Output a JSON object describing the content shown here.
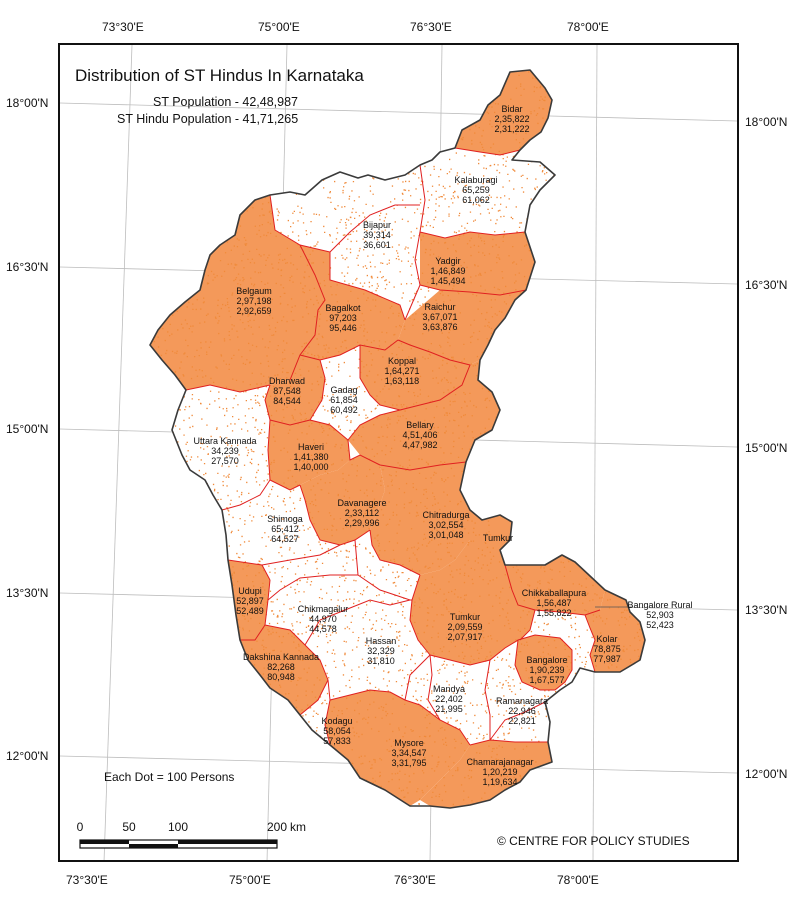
{
  "title": "Distribution of ST Hindus In Karnataka",
  "summary": {
    "st_population": "ST Population - 42,48,987",
    "st_hindu_population": "ST Hindu Population - 41,71,265"
  },
  "legend": {
    "dot_note": "Each Dot = 100 Persons"
  },
  "credit": "© CENTRE FOR POLICY STUDIES",
  "scale_bar": {
    "labels": [
      "0",
      "50",
      "100",
      "200",
      "km"
    ]
  },
  "graticule": {
    "lon_labels": [
      "73°30'E",
      "75°00'E",
      "76°30'E",
      "78°00'E"
    ],
    "lat_labels": [
      "18°00'N",
      "16°30'N",
      "15°00'N",
      "13°30'N",
      "12°00'N"
    ]
  },
  "colors": {
    "fill_high": "#f4995a",
    "dots": "#f08a3a",
    "district_border": "#e02020",
    "state_border": "#3a3a3a",
    "graticule": "#bdbdbd"
  },
  "districts": [
    {
      "name": "Bidar",
      "st_population": "2,35,822",
      "st_hindu": "2,31,222",
      "shaded": true
    },
    {
      "name": "Kalaburagi",
      "st_population": "65,259",
      "st_hindu": "61,062",
      "shaded": false
    },
    {
      "name": "Bijapur",
      "st_population": "39,314",
      "st_hindu": "36,601",
      "shaded": false
    },
    {
      "name": "Yadgir",
      "st_population": "1,46,849",
      "st_hindu": "1,45,494",
      "shaded": true
    },
    {
      "name": "Belgaum",
      "st_population": "2,97,198",
      "st_hindu": "2,92,659",
      "shaded": true
    },
    {
      "name": "Bagalkot",
      "st_population": "97,203",
      "st_hindu": "95,446",
      "shaded": true
    },
    {
      "name": "Raichur",
      "st_population": "3,67,071",
      "st_hindu": "3,63,876",
      "shaded": true
    },
    {
      "name": "Koppal",
      "st_population": "1,64,271",
      "st_hindu": "1,63,118",
      "shaded": true
    },
    {
      "name": "Dharwad",
      "st_population": "87,548",
      "st_hindu": "84,544",
      "shaded": true
    },
    {
      "name": "Gadag",
      "st_population": "61,854",
      "st_hindu": "60,492",
      "shaded": false
    },
    {
      "name": "Uttara Kannada",
      "st_population": "34,239",
      "st_hindu": "27,570",
      "shaded": false
    },
    {
      "name": "Haveri",
      "st_population": "1,41,380",
      "st_hindu": "1,40,000",
      "shaded": true
    },
    {
      "name": "Bellary",
      "st_population": "4,51,406",
      "st_hindu": "4,47,982",
      "shaded": true
    },
    {
      "name": "Davanagere",
      "st_population": "2,33,112",
      "st_hindu": "2,29,996",
      "shaded": true
    },
    {
      "name": "Chitradurga",
      "st_population": "3,02,554",
      "st_hindu": "3,01,048",
      "shaded": true
    },
    {
      "name": "Shimoga",
      "st_population": "65,412",
      "st_hindu": "64,527",
      "shaded": false
    },
    {
      "name": "Tumkur",
      "st_population": "",
      "st_hindu": "",
      "shaded": false
    },
    {
      "name": "Udupi",
      "st_population": "52,897",
      "st_hindu": "52,489",
      "shaded": true
    },
    {
      "name": "Chikmagalur",
      "st_population": "44,970",
      "st_hindu": "44,578",
      "shaded": false
    },
    {
      "name": "Chikkaballapura",
      "st_population": "1,56,487",
      "st_hindu": "1,55,822",
      "shaded": true
    },
    {
      "name": "Bangalore Rural",
      "st_population": "52,903",
      "st_hindu": "52,423",
      "shaded": false
    },
    {
      "name": "Tumkur",
      "st_population": "2,09,559",
      "st_hindu": "2,07,917",
      "shaded": true
    },
    {
      "name": "Kolar",
      "st_population": "78,875",
      "st_hindu": "77,987",
      "shaded": true
    },
    {
      "name": "Hassan",
      "st_population": "32,329",
      "st_hindu": "31,810",
      "shaded": false
    },
    {
      "name": "Dakshina Kannada",
      "st_population": "82,268",
      "st_hindu": "80,948",
      "shaded": true
    },
    {
      "name": "Bangalore",
      "st_population": "1,90,239",
      "st_hindu": "1,67,577",
      "shaded": true
    },
    {
      "name": "Mandya",
      "st_population": "22,402",
      "st_hindu": "21,995",
      "shaded": false
    },
    {
      "name": "Ramanagara",
      "st_population": "22,946",
      "st_hindu": "22,821",
      "shaded": false
    },
    {
      "name": "Kodagu",
      "st_population": "58,054",
      "st_hindu": "57,833",
      "shaded": false
    },
    {
      "name": "Mysore",
      "st_population": "3,34,547",
      "st_hindu": "3,31,795",
      "shaded": true
    },
    {
      "name": "Chamarajanagar",
      "st_population": "1,20,219",
      "st_hindu": "1,19,634",
      "shaded": true
    }
  ]
}
